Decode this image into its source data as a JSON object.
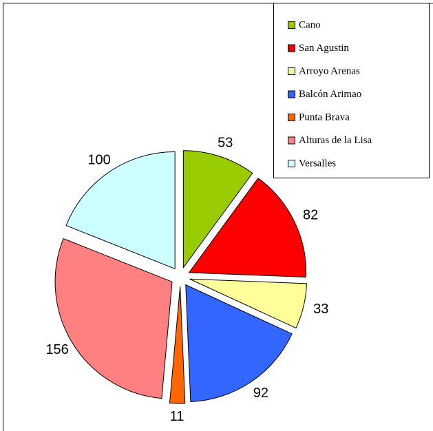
{
  "chart_data": {
    "type": "pie",
    "categories": [
      "Cano",
      "San Agustin",
      "Arroyo Arenas",
      "Balcón Arimao",
      "Punta Brava",
      "Alturas de la Lisa",
      "Versalles"
    ],
    "values": [
      53,
      82,
      33,
      92,
      11,
      156,
      100
    ],
    "colors": [
      "#99cc00",
      "#ff0000",
      "#ffff99",
      "#3366ff",
      "#ff6600",
      "#ff8080",
      "#ccffff"
    ],
    "legend": "top-right"
  }
}
